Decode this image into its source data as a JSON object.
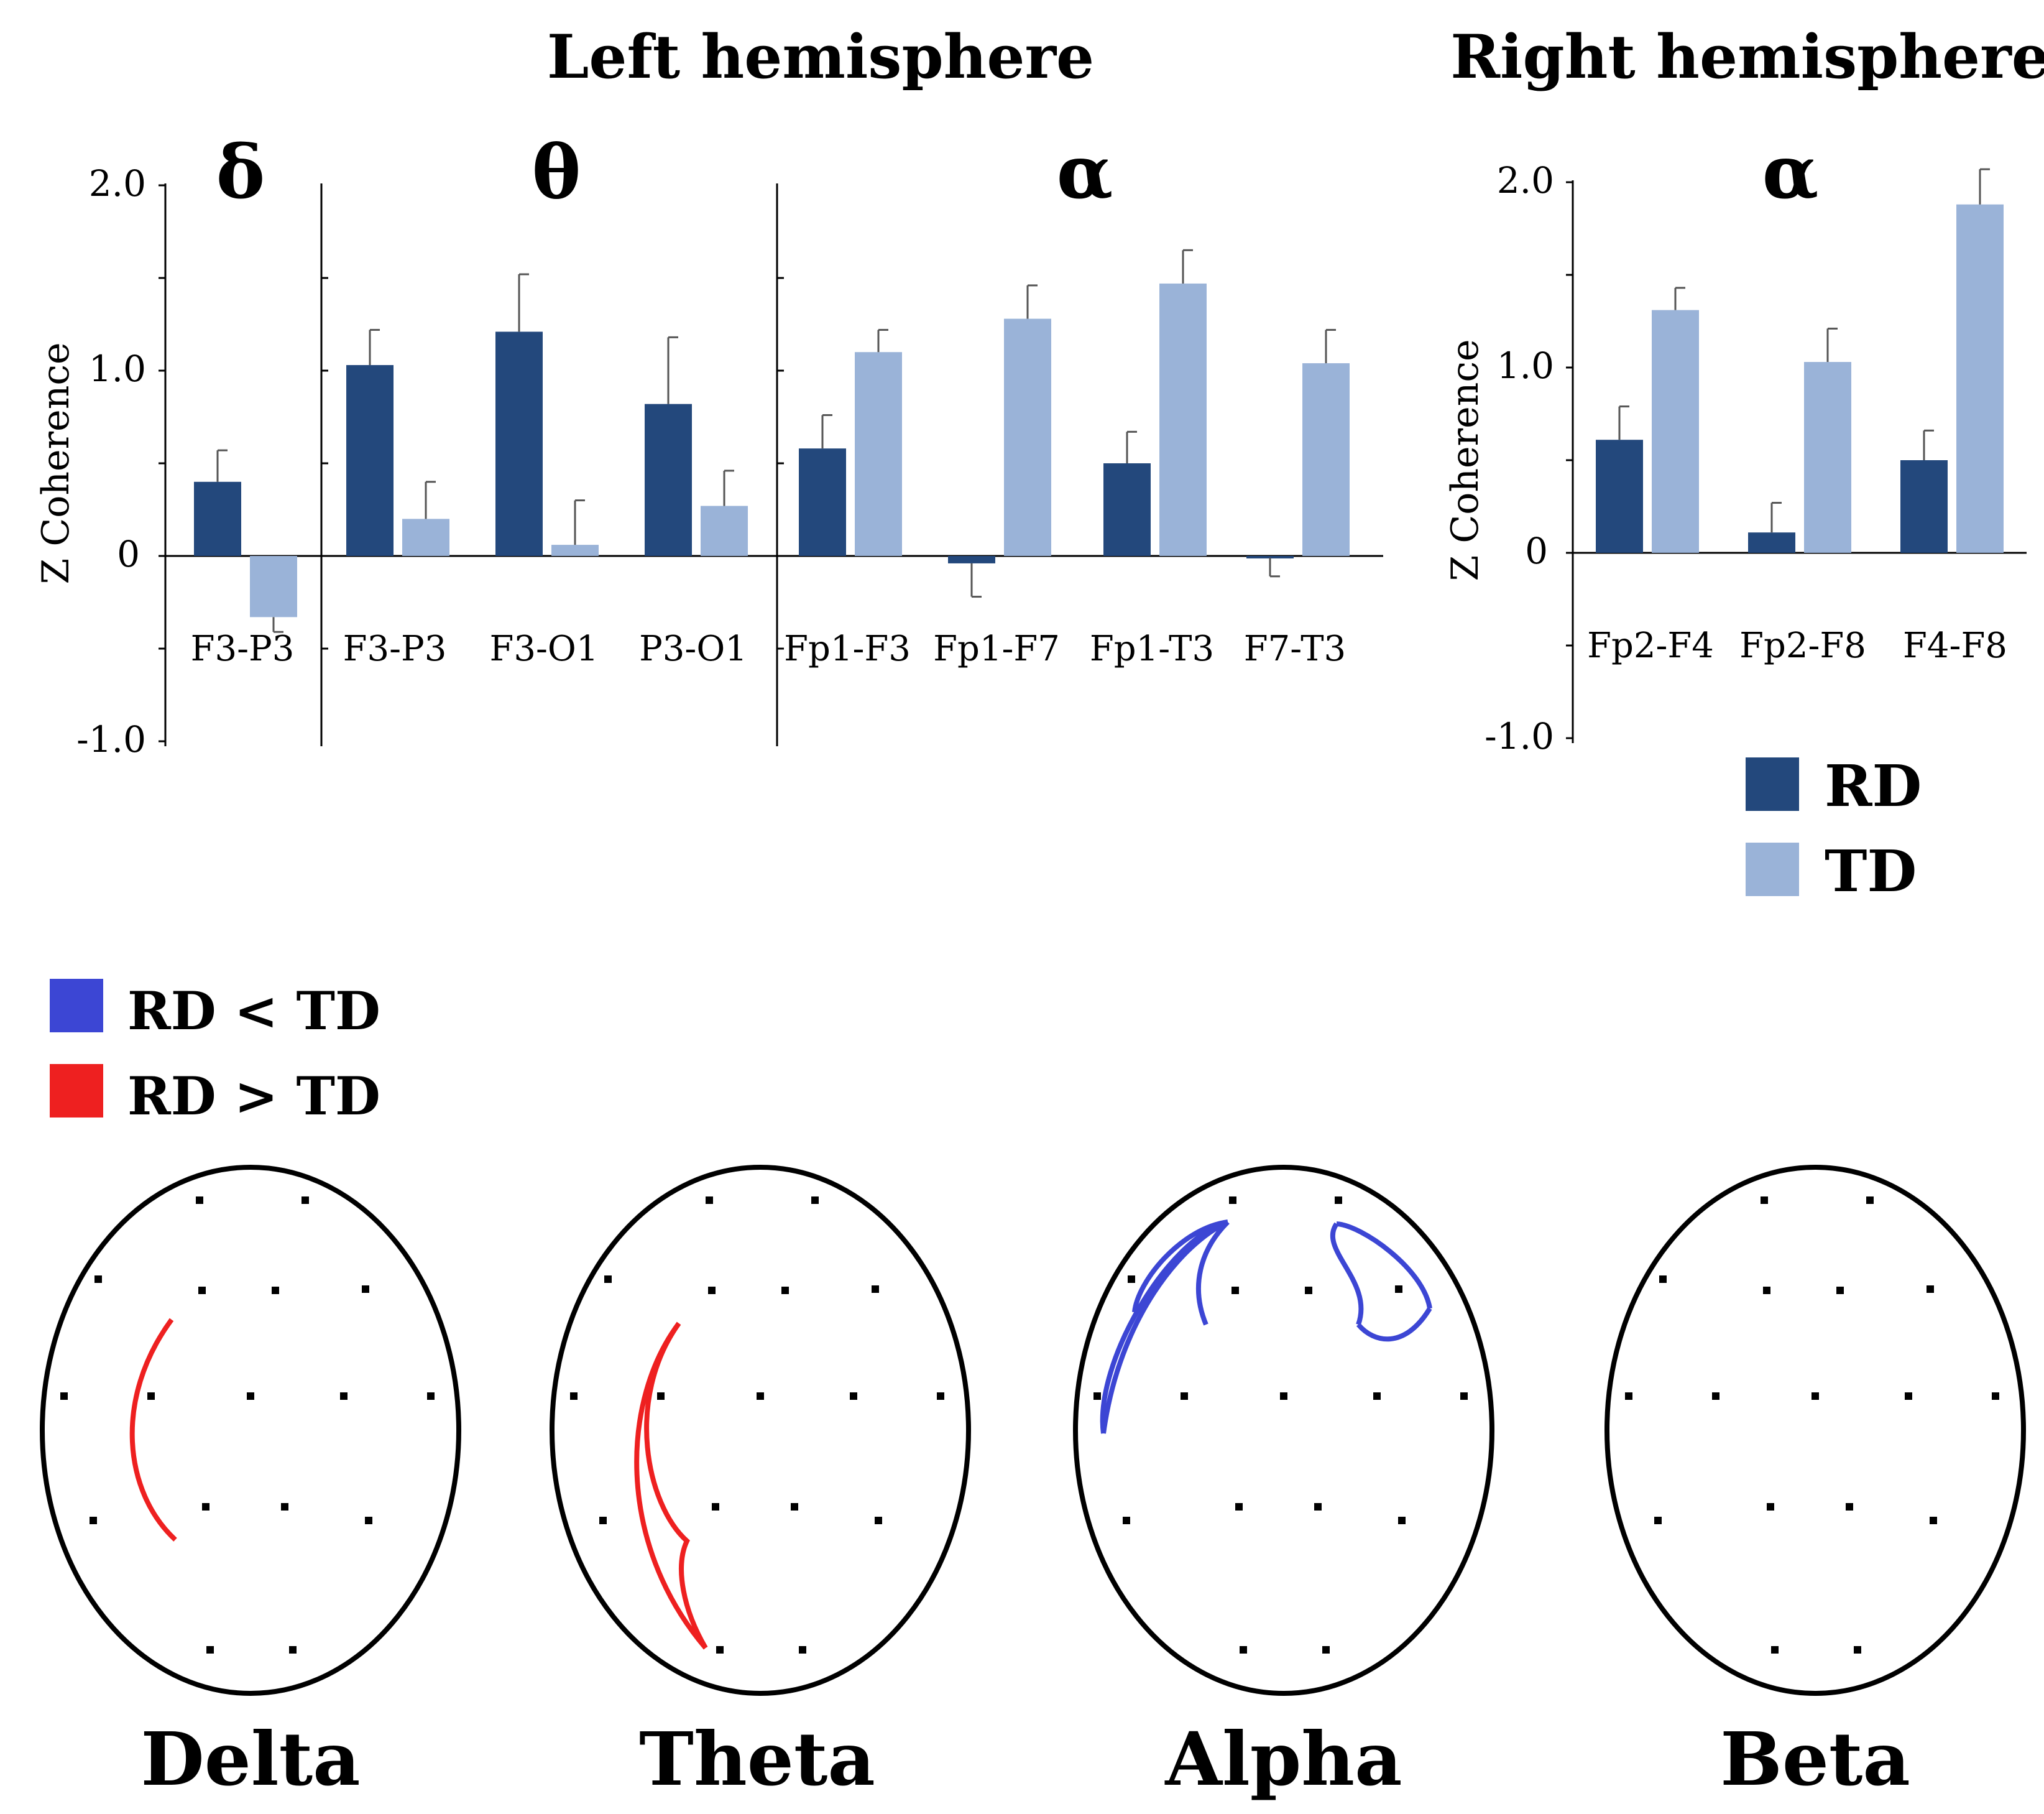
{
  "figure": {
    "left_title": "Left hemisphere",
    "right_title": "Right hemisphere",
    "bands_top": {
      "delta": "δ",
      "theta": "θ",
      "alpha_left": "α",
      "alpha_right": "α"
    },
    "ylabel": "Z Coherence",
    "y_ticks": [
      "2.0",
      "1.0",
      "0",
      "-1.0"
    ],
    "legend": {
      "rd": "RD",
      "td": "TD",
      "rd_color": "#23487c",
      "td_color": "#9ab3d8"
    },
    "map_legend": {
      "less": "RD < TD",
      "greater": "RD > TD",
      "less_color": "#3c46d4",
      "greater_color": "#ee2020"
    },
    "head_labels": [
      "Delta",
      "Theta",
      "Alpha",
      "Beta"
    ]
  },
  "chart_data": [
    {
      "type": "bar",
      "title": "Left hemisphere",
      "ylabel": "Z Coherence",
      "ylim": [
        -1.0,
        2.0
      ],
      "groups": [
        {
          "band": "δ",
          "categories": [
            "F3-P3"
          ],
          "series": [
            {
              "name": "RD",
              "values": [
                0.4
              ],
              "errors": [
                0.17
              ]
            },
            {
              "name": "TD",
              "values": [
                -0.33
              ],
              "errors": [
                0.08
              ]
            }
          ]
        },
        {
          "band": "θ",
          "categories": [
            "F3-P3",
            "F3-O1",
            "P3-O1"
          ],
          "series": [
            {
              "name": "RD",
              "values": [
                1.03,
                1.21,
                0.82
              ],
              "errors": [
                0.19,
                0.31,
                0.36
              ]
            },
            {
              "name": "TD",
              "values": [
                0.2,
                0.06,
                0.27
              ],
              "errors": [
                0.2,
                0.24,
                0.19
              ]
            }
          ]
        },
        {
          "band": "α",
          "categories": [
            "Fp1-F3",
            "Fp1-F7",
            "Fp1-T3",
            "F7-T3"
          ],
          "series": [
            {
              "name": "RD",
              "values": [
                0.58,
                -0.04,
                0.5,
                -0.01
              ],
              "errors": [
                0.18,
                0.18,
                0.17,
                0.1
              ]
            },
            {
              "name": "TD",
              "values": [
                1.1,
                1.28,
                1.47,
                1.04
              ],
              "errors": [
                0.12,
                0.18,
                0.18,
                0.18
              ]
            }
          ]
        }
      ]
    },
    {
      "type": "bar",
      "title": "Right hemisphere",
      "ylabel": "Z Coherence",
      "ylim": [
        -1.0,
        2.0
      ],
      "groups": [
        {
          "band": "α",
          "categories": [
            "Fp2-F4",
            "Fp2-F8",
            "F4-F8"
          ],
          "series": [
            {
              "name": "RD",
              "values": [
                0.61,
                0.11,
                0.5
              ],
              "errors": [
                0.18,
                0.16,
                0.16
              ]
            },
            {
              "name": "TD",
              "values": [
                1.31,
                1.03,
                1.88
              ],
              "errors": [
                0.12,
                0.18,
                0.19
              ]
            }
          ]
        }
      ]
    }
  ]
}
